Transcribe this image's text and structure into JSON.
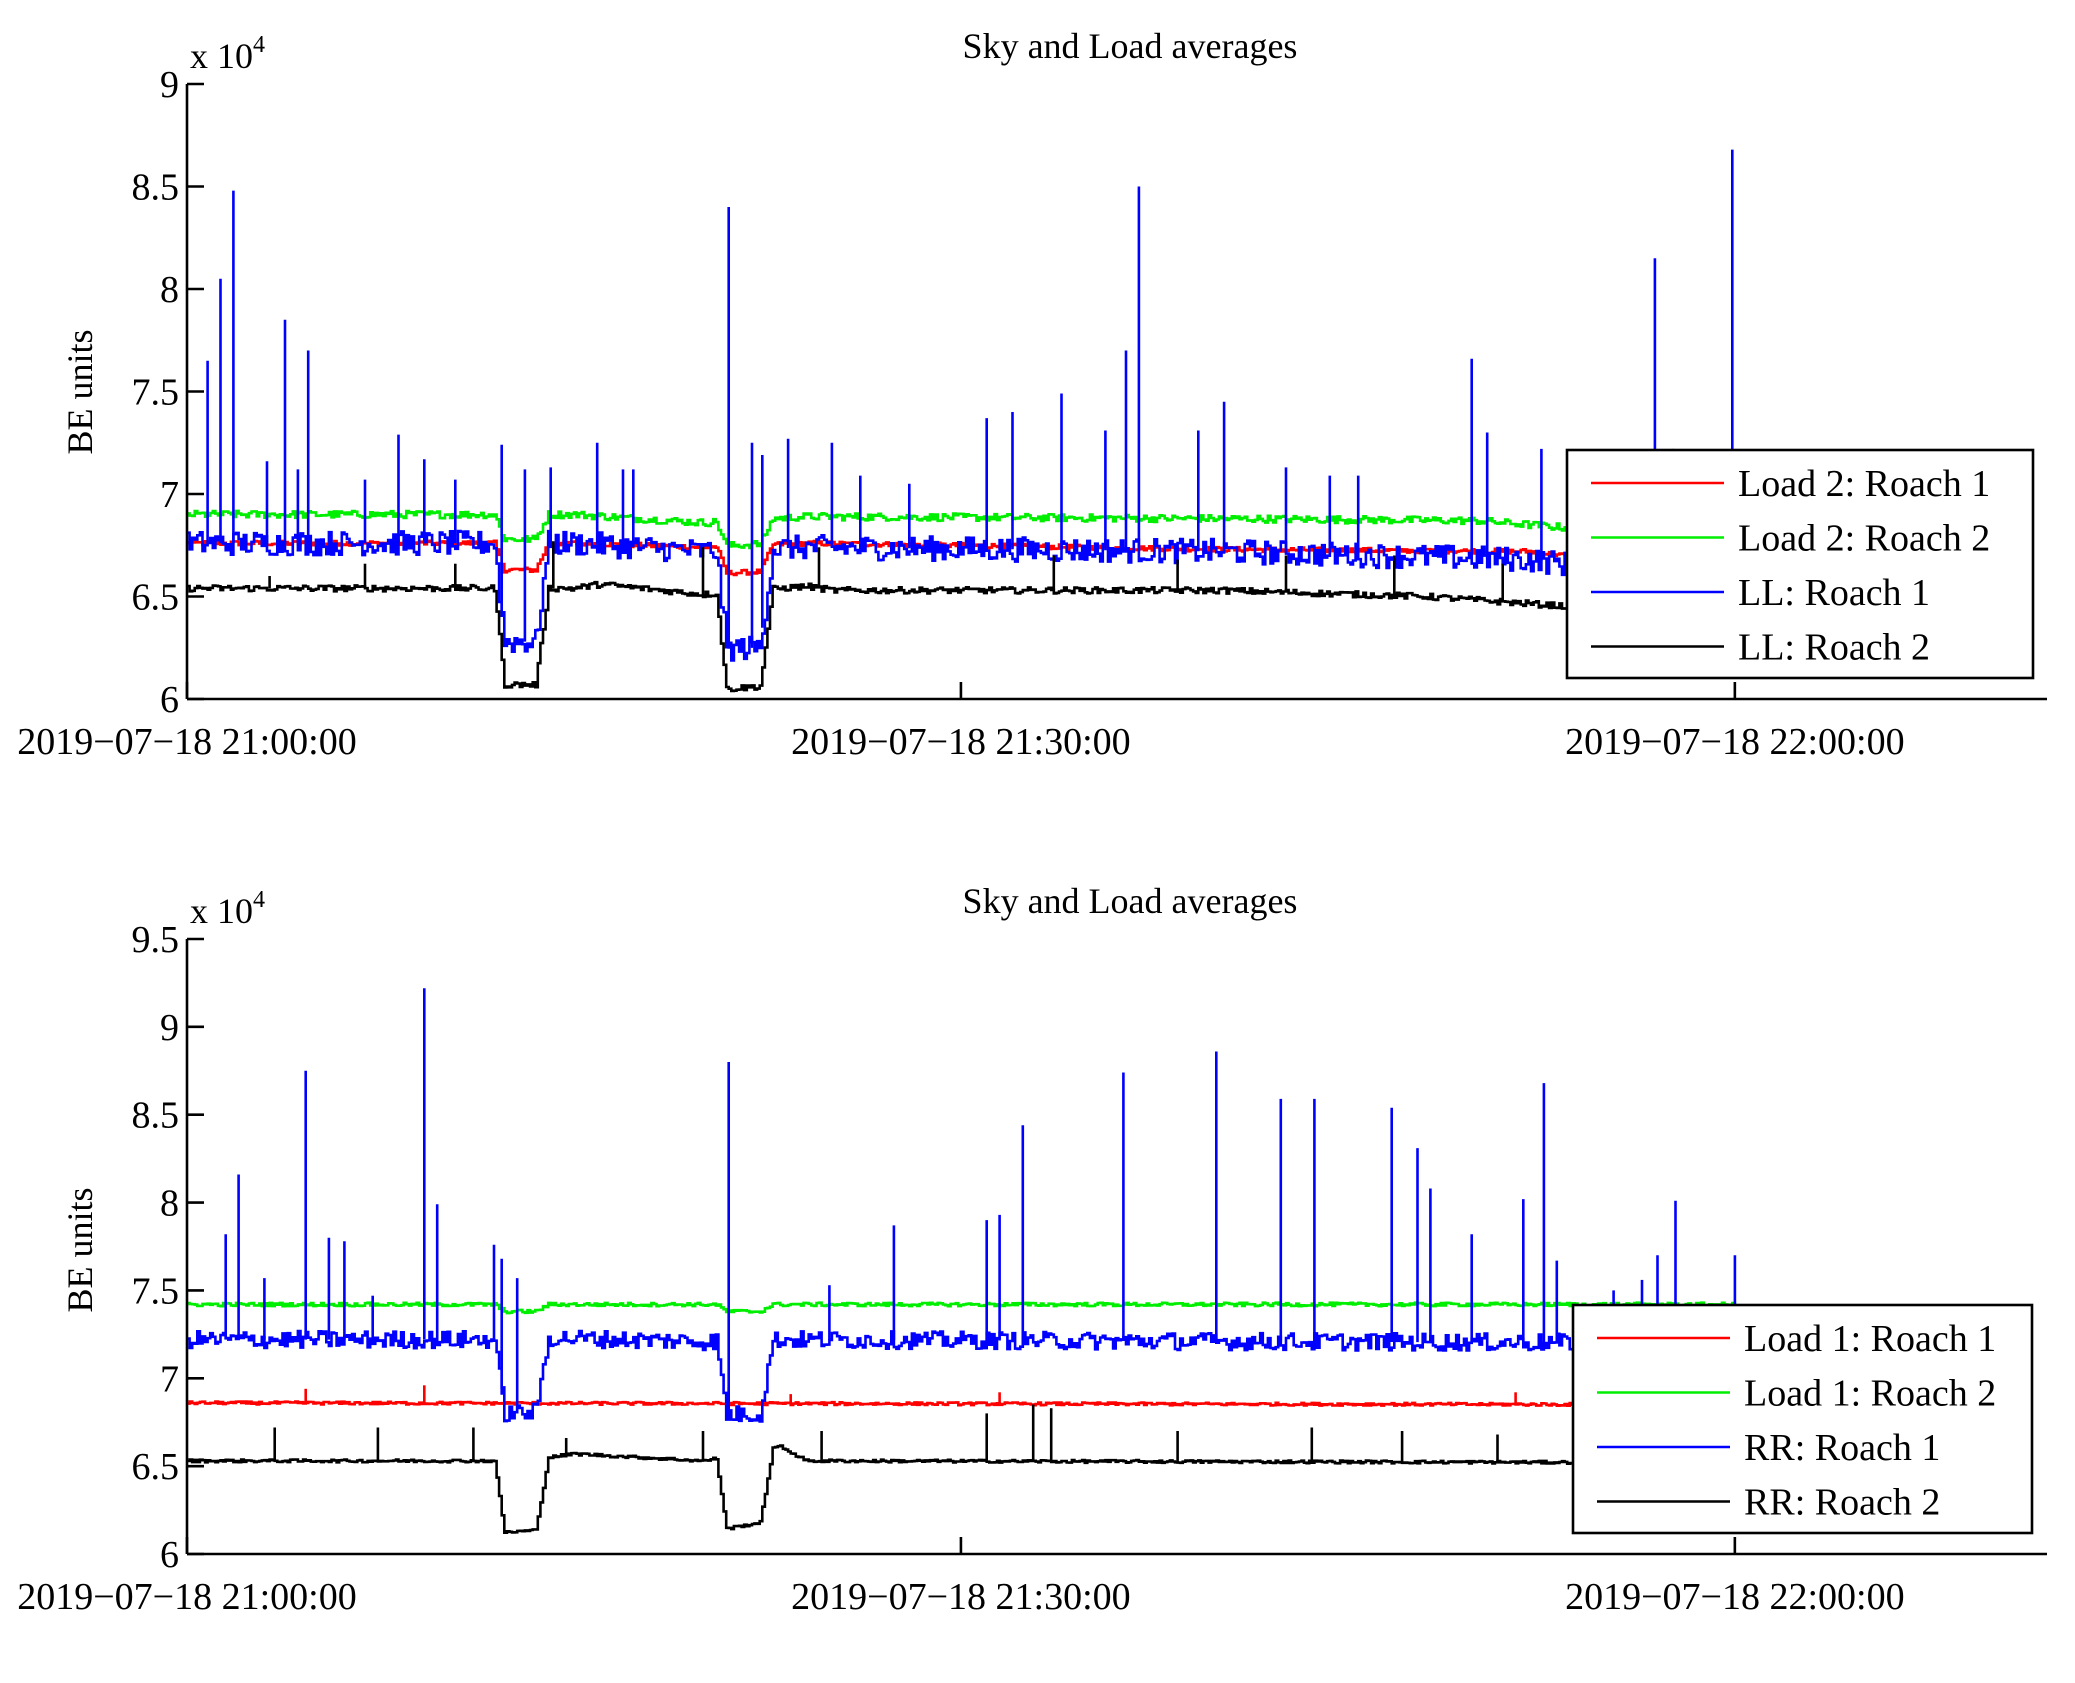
{
  "chart_data": [
    {
      "type": "line",
      "title": "Sky and Load averages",
      "xlabel": "",
      "ylabel": "BE units",
      "y_multiplier_label": "x 10",
      "y_multiplier_exponent": "4",
      "ylim": [
        6,
        9
      ],
      "yticks": [
        6,
        6.5,
        7,
        7.5,
        8,
        8.5,
        9
      ],
      "ytick_labels": [
        "6",
        "6.5",
        "7",
        "7.5",
        "8",
        "8.5",
        "9"
      ],
      "x_unit": "minutes after 2019-07-18 21:00:00",
      "xlim": [
        0,
        72.1
      ],
      "xticks": [
        0,
        30,
        60
      ],
      "xtick_labels": [
        "2019−07−18 21:00:00",
        "2019−07−18 21:30:00",
        "2019−07−18 22:00:00"
      ],
      "grid": false,
      "legend_position": "lower-right",
      "data_range_minutes": [
        0,
        60
      ],
      "dips": [
        {
          "start": 11.9,
          "end": 14.0,
          "bottom_start": 12.3,
          "bottom_end": 13.5
        },
        {
          "start": 20.5,
          "end": 22.7,
          "bottom_start": 20.9,
          "bottom_end": 22.2
        }
      ],
      "series": [
        {
          "name": "Load 2: Roach 1",
          "color": "#ff0000",
          "baseline": [
            [
              0,
              6.76
            ],
            [
              15,
              6.76
            ],
            [
              20,
              6.74
            ],
            [
              24,
              6.76
            ],
            [
              40,
              6.73
            ],
            [
              52,
              6.72
            ],
            [
              56,
              6.66
            ],
            [
              60,
              6.68
            ]
          ],
          "dip_depth": 0.13,
          "noise": 0.012,
          "spikes": []
        },
        {
          "name": "Load 2: Roach 2",
          "color": "#00ee00",
          "baseline": [
            [
              0,
              6.9
            ],
            [
              15,
              6.9
            ],
            [
              20,
              6.86
            ],
            [
              24,
              6.89
            ],
            [
              40,
              6.88
            ],
            [
              50,
              6.87
            ],
            [
              56,
              6.81
            ],
            [
              60,
              6.84
            ]
          ],
          "dip_depth": 0.12,
          "noise": 0.018,
          "spikes": []
        },
        {
          "name": "LL: Roach 1",
          "color": "#0000ff",
          "baseline": [
            [
              0,
              6.76
            ],
            [
              15,
              6.76
            ],
            [
              20,
              6.72
            ],
            [
              24,
              6.74
            ],
            [
              40,
              6.72
            ],
            [
              52,
              6.68
            ],
            [
              56,
              6.62
            ],
            [
              60,
              6.66
            ]
          ],
          "dip_depth": 0.48,
          "noise": 0.06,
          "spikes": [
            [
              0.8,
              7.65
            ],
            [
              1.3,
              8.05
            ],
            [
              1.8,
              8.48
            ],
            [
              3.8,
              7.85
            ],
            [
              4.7,
              7.7
            ],
            [
              3.1,
              7.16
            ],
            [
              4.3,
              7.12
            ],
            [
              6.9,
              7.07
            ],
            [
              8.2,
              7.29
            ],
            [
              9.2,
              7.17
            ],
            [
              10.4,
              7.07
            ],
            [
              12.2,
              7.24
            ],
            [
              13.1,
              7.12
            ],
            [
              14.1,
              7.13
            ],
            [
              15.9,
              7.25
            ],
            [
              16.9,
              7.12
            ],
            [
              17.3,
              7.12
            ],
            [
              21.0,
              8.4
            ],
            [
              21.9,
              7.25
            ],
            [
              22.3,
              7.19
            ],
            [
              23.3,
              7.27
            ],
            [
              25.0,
              7.25
            ],
            [
              26.1,
              7.09
            ],
            [
              28.0,
              7.05
            ],
            [
              31.0,
              7.37
            ],
            [
              32.0,
              7.4
            ],
            [
              33.9,
              7.49
            ],
            [
              35.6,
              7.31
            ],
            [
              36.4,
              7.7
            ],
            [
              36.9,
              8.5
            ],
            [
              39.2,
              7.31
            ],
            [
              40.2,
              7.45
            ],
            [
              42.6,
              7.13
            ],
            [
              44.3,
              7.09
            ],
            [
              45.4,
              7.09
            ],
            [
              49.8,
              7.66
            ],
            [
              50.4,
              7.3
            ],
            [
              52.5,
              7.22
            ],
            [
              56.9,
              8.15
            ],
            [
              57.6,
              7.22
            ],
            [
              59.9,
              8.68
            ]
          ]
        },
        {
          "name": "LL: Roach 2",
          "color": "#000000",
          "baseline": [
            [
              0,
              6.54
            ],
            [
              15,
              6.54
            ],
            [
              16,
              6.56
            ],
            [
              20,
              6.51
            ],
            [
              24,
              6.55
            ],
            [
              25,
              6.53
            ],
            [
              40,
              6.53
            ],
            [
              48,
              6.5
            ],
            [
              56,
              6.43
            ],
            [
              60,
              6.46
            ]
          ],
          "dip_depth": 0.47,
          "noise": 0.015,
          "spikes": [
            [
              3.2,
              6.6
            ],
            [
              6.9,
              6.66
            ],
            [
              10.4,
              6.66
            ],
            [
              14.2,
              6.77
            ],
            [
              20.0,
              6.74
            ],
            [
              24.5,
              6.74
            ],
            [
              33.6,
              6.7
            ],
            [
              38.4,
              6.68
            ],
            [
              42.6,
              6.7
            ],
            [
              46.8,
              6.7
            ],
            [
              51.0,
              6.66
            ],
            [
              53.5,
              6.66
            ]
          ]
        }
      ]
    },
    {
      "type": "line",
      "title": "Sky and Load averages",
      "xlabel": "",
      "ylabel": "BE units",
      "y_multiplier_label": "x 10",
      "y_multiplier_exponent": "4",
      "ylim": [
        6,
        9.5
      ],
      "yticks": [
        6,
        6.5,
        7,
        7.5,
        8,
        8.5,
        9,
        9.5
      ],
      "ytick_labels": [
        "6",
        "6.5",
        "7",
        "7.5",
        "8",
        "8.5",
        "9",
        "9.5"
      ],
      "x_unit": "minutes after 2019-07-18 21:00:00",
      "xlim": [
        0,
        72.1
      ],
      "xticks": [
        0,
        30,
        60
      ],
      "xtick_labels": [
        "2019−07−18 21:00:00",
        "2019−07−18 21:30:00",
        "2019−07−18 22:00:00"
      ],
      "grid": false,
      "legend_position": "lower-right",
      "data_range_minutes": [
        0,
        60
      ],
      "dips": [
        {
          "start": 11.9,
          "end": 14.0,
          "bottom_start": 12.3,
          "bottom_end": 13.5
        },
        {
          "start": 20.5,
          "end": 22.7,
          "bottom_start": 20.9,
          "bottom_end": 22.2
        }
      ],
      "series": [
        {
          "name": "Load 1: Roach 1",
          "color": "#ff0000",
          "baseline": [
            [
              0,
              6.86
            ],
            [
              60,
              6.85
            ]
          ],
          "dip_depth": 0.0,
          "noise": 0.008,
          "spikes": [
            [
              4.6,
              6.94
            ],
            [
              9.2,
              6.96
            ],
            [
              21.0,
              6.95
            ],
            [
              23.4,
              6.91
            ],
            [
              31.5,
              6.92
            ],
            [
              51.5,
              6.92
            ]
          ]
        },
        {
          "name": "Load 1: Roach 2",
          "color": "#00ee00",
          "baseline": [
            [
              0,
              7.42
            ],
            [
              60,
              7.42
            ]
          ],
          "dip_depth": 0.04,
          "noise": 0.01,
          "spikes": []
        },
        {
          "name": "RR: Roach 1",
          "color": "#0000ff",
          "baseline": [
            [
              0,
              7.22
            ],
            [
              12,
              7.22
            ],
            [
              14,
              7.23
            ],
            [
              20,
              7.21
            ],
            [
              23,
              7.22
            ],
            [
              40,
              7.21
            ],
            [
              60,
              7.2
            ]
          ],
          "dip_depth": 0.42,
          "noise": 0.05,
          "spikes": [
            [
              1.5,
              7.82
            ],
            [
              2.0,
              8.16
            ],
            [
              3.0,
              7.57
            ],
            [
              4.6,
              8.75
            ],
            [
              5.5,
              7.8
            ],
            [
              6.1,
              7.78
            ],
            [
              7.2,
              7.47
            ],
            [
              9.2,
              9.22
            ],
            [
              9.7,
              7.99
            ],
            [
              11.9,
              7.76
            ],
            [
              12.2,
              7.68
            ],
            [
              12.8,
              7.57
            ],
            [
              21.0,
              8.8
            ],
            [
              24.9,
              7.53
            ],
            [
              27.4,
              7.87
            ],
            [
              31.0,
              7.9
            ],
            [
              31.5,
              7.93
            ],
            [
              32.4,
              8.44
            ],
            [
              36.3,
              8.74
            ],
            [
              39.9,
              8.86
            ],
            [
              42.4,
              8.59
            ],
            [
              43.7,
              8.59
            ],
            [
              46.7,
              8.54
            ],
            [
              47.7,
              8.31
            ],
            [
              48.2,
              8.08
            ],
            [
              49.8,
              7.82
            ],
            [
              51.8,
              8.02
            ],
            [
              52.6,
              8.68
            ],
            [
              53.1,
              7.67
            ],
            [
              55.3,
              7.5
            ],
            [
              56.4,
              7.56
            ],
            [
              57.0,
              7.7
            ],
            [
              57.7,
              8.01
            ],
            [
              60.0,
              7.7
            ]
          ]
        },
        {
          "name": "RR: Roach 2",
          "color": "#000000",
          "baseline": [
            [
              0,
              6.53
            ],
            [
              12,
              6.53
            ],
            [
              14,
              6.55
            ],
            [
              15,
              6.57
            ],
            [
              20,
              6.53
            ],
            [
              23,
              6.61
            ],
            [
              24,
              6.53
            ],
            [
              60,
              6.52
            ]
          ],
          "dip_depth": 0.41,
          "noise": 0.008,
          "spikes": [
            [
              3.4,
              6.72
            ],
            [
              7.4,
              6.72
            ],
            [
              11.1,
              6.72
            ],
            [
              14.7,
              6.66
            ],
            [
              20.0,
              6.7
            ],
            [
              24.6,
              6.7
            ],
            [
              31.0,
              6.8
            ],
            [
              32.8,
              6.85
            ],
            [
              33.5,
              6.83
            ],
            [
              38.4,
              6.7
            ],
            [
              43.6,
              6.72
            ],
            [
              47.1,
              6.7
            ],
            [
              50.8,
              6.68
            ]
          ]
        }
      ]
    }
  ]
}
